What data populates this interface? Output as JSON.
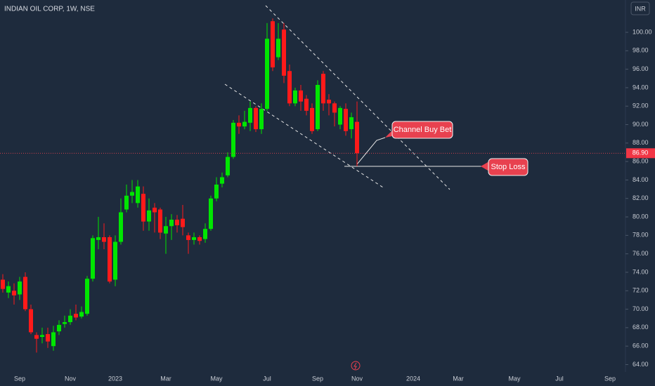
{
  "chart_data": {
    "type": "candlestick",
    "title": "INDIAN OIL CORP, 1W, NSE",
    "currency": "INR",
    "categories": [
      null,
      null,
      null,
      "Sep",
      null,
      null,
      null,
      null,
      null,
      null,
      null,
      null,
      "Nov",
      null,
      null,
      null,
      null,
      null,
      null,
      null,
      "2023",
      null,
      null,
      null,
      null,
      null,
      null,
      null,
      null,
      "Mar",
      null,
      null,
      null,
      null,
      null,
      null,
      null,
      null,
      "May",
      null,
      null,
      null,
      null,
      null,
      null,
      null,
      null,
      "Jul",
      null,
      null,
      null,
      null,
      null,
      null,
      null,
      null,
      "Sep",
      null,
      null,
      null,
      null,
      null,
      null,
      "Nov",
      null,
      null,
      null,
      null,
      null,
      null,
      null,
      null,
      null,
      "2024",
      null,
      null,
      null,
      null,
      null,
      null,
      null,
      "Mar",
      null,
      null,
      null,
      null,
      null,
      null,
      null,
      null,
      null,
      "May",
      null,
      null,
      null,
      null,
      null,
      null,
      null,
      "Jul",
      null,
      null,
      null,
      null,
      null,
      null,
      null,
      null,
      "Sep",
      null,
      null
    ],
    "open": [
      73.2,
      71.8,
      72,
      71.6,
      73.5,
      70,
      67.2,
      67,
      67.3,
      66,
      67.6,
      68.4,
      68.6,
      69.5,
      69.2,
      69.5,
      73.3,
      77.5,
      77.8,
      77.8,
      73.2,
      77.3,
      80.8,
      82.3,
      81.5,
      82.5,
      79.5,
      81,
      80.8,
      78.2,
      79,
      79.7,
      79.8,
      78,
      77.5,
      77.8,
      77.6,
      78.7,
      82,
      83.6,
      84.5,
      86.5,
      90.2,
      89.8,
      90.2,
      91.8,
      89.5,
      91.7,
      101.2,
      97.3,
      100.3,
      95.8,
      92.3,
      93.7,
      92.8,
      91.8,
      89.5,
      95.5,
      92.7,
      92.3,
      90,
      91.7,
      89.5,
      90.3,
      null,
      null,
      null,
      null,
      null,
      null,
      null,
      null,
      null,
      null,
      null,
      null,
      null,
      null,
      null,
      null,
      null,
      null,
      null,
      null,
      null,
      null,
      null,
      null,
      null,
      null,
      null,
      null,
      null,
      null,
      null,
      null,
      null,
      null,
      null,
      null,
      null,
      null,
      null,
      null,
      null,
      null,
      null,
      null,
      null,
      null,
      null
    ],
    "high": [
      73.8,
      73,
      72.8,
      73.5,
      74,
      70.5,
      67.5,
      68,
      68,
      68.2,
      68.8,
      69.3,
      70,
      70.5,
      70.3,
      73.6,
      78,
      80,
      79.3,
      78,
      78,
      82,
      83.5,
      84,
      84,
      83.3,
      82,
      81.5,
      81,
      80,
      80.3,
      80.2,
      81.3,
      78.3,
      78.3,
      78,
      79.3,
      82.3,
      84.3,
      84.8,
      87,
      90.5,
      91,
      91.5,
      92.5,
      92,
      92.3,
      101,
      101.5,
      101,
      101,
      96.5,
      94,
      94.3,
      93.2,
      92.3,
      94.8,
      95.8,
      93.3,
      92.5,
      92,
      92.3,
      91.3,
      92.5,
      null,
      null,
      null,
      null,
      null,
      null,
      null,
      null,
      null,
      null,
      null,
      null,
      null,
      null,
      null,
      null,
      null,
      null,
      null,
      null,
      null,
      null,
      null,
      null,
      null,
      null,
      null,
      null,
      null,
      null,
      null,
      null,
      null,
      null,
      null,
      null,
      null,
      null,
      null,
      null,
      null,
      null,
      null,
      null,
      null,
      null,
      null
    ],
    "low": [
      71.8,
      71.2,
      70.5,
      71,
      69.8,
      67.3,
      65.3,
      66.3,
      65.8,
      65.5,
      67.2,
      68,
      68.3,
      68.8,
      69,
      69.3,
      73,
      76.5,
      76.5,
      72.8,
      72.5,
      77,
      80.5,
      81.5,
      81,
      78.5,
      78.5,
      78.3,
      77.6,
      76,
      77.5,
      78.3,
      78,
      76,
      77,
      77,
      77.2,
      78.5,
      81.7,
      83.2,
      84.3,
      86.3,
      89,
      89.5,
      89.3,
      89.2,
      89,
      91.5,
      95.8,
      97,
      94.5,
      92,
      92,
      91.5,
      91,
      89,
      89.3,
      91.5,
      91,
      89.8,
      89.5,
      88.8,
      88.5,
      85.5,
      null,
      null,
      null,
      null,
      null,
      null,
      null,
      null,
      null,
      null,
      null,
      null,
      null,
      null,
      null,
      null,
      null,
      null,
      null,
      null,
      null,
      null,
      null,
      null,
      null,
      null,
      null,
      null,
      null,
      null,
      null,
      null,
      null,
      null,
      null,
      null,
      null,
      null,
      null,
      null,
      null,
      null,
      null,
      null,
      null,
      null,
      null
    ],
    "close": [
      72.2,
      72.5,
      71.5,
      73,
      70,
      67.5,
      66.8,
      67.2,
      66.5,
      67.5,
      68.3,
      68.6,
      69.3,
      69.1,
      69.7,
      73.3,
      77.7,
      77.8,
      77.3,
      73,
      77.3,
      80.5,
      82.3,
      82.7,
      83.3,
      79.5,
      80.7,
      80.5,
      78.3,
      79,
      79.7,
      79.1,
      78.9,
      77.5,
      77.8,
      77.4,
      78.7,
      82,
      83.5,
      84.3,
      86.5,
      90.2,
      89.8,
      90.3,
      91.8,
      89.5,
      91.7,
      99.3,
      96.2,
      99.3,
      95.3,
      92.3,
      93.7,
      92.5,
      91.5,
      89.3,
      94.3,
      92.3,
      92.3,
      91.3,
      91.8,
      89.3,
      90.8,
      86.9,
      null,
      null,
      null,
      null,
      null,
      null,
      null,
      null,
      null,
      null,
      null,
      null,
      null,
      null,
      null,
      null,
      null,
      null,
      null,
      null,
      null,
      null,
      null,
      null,
      null,
      null,
      null,
      null,
      null,
      null,
      null,
      null,
      null,
      null,
      null,
      null,
      null,
      null,
      null,
      null,
      null,
      null,
      null,
      null,
      null,
      null,
      null
    ],
    "up_color": "#00e600",
    "down_color": "#ff1a1a",
    "ylim": [
      63.2,
      103.5
    ],
    "yticks": [
      {
        "value": 64,
        "label": "64.00"
      },
      {
        "value": 66,
        "label": "66.00"
      },
      {
        "value": 68,
        "label": "68.00"
      },
      {
        "value": 70,
        "label": "70.00"
      },
      {
        "value": 72,
        "label": "72.00"
      },
      {
        "value": 74,
        "label": "74.00"
      },
      {
        "value": 76,
        "label": "76.00"
      },
      {
        "value": 78,
        "label": "78.00"
      },
      {
        "value": 80,
        "label": "80.00"
      },
      {
        "value": 82,
        "label": "82.00"
      },
      {
        "value": 84,
        "label": "84.00"
      },
      {
        "value": 86,
        "label": "86.00"
      },
      {
        "value": 88,
        "label": "88.00"
      },
      {
        "value": 90,
        "label": "90.00"
      },
      {
        "value": 92,
        "label": "92.00"
      },
      {
        "value": 94,
        "label": "94.00"
      },
      {
        "value": 96,
        "label": "96.00"
      },
      {
        "value": 98,
        "label": "98.00"
      },
      {
        "value": 100,
        "label": "100.00"
      }
    ],
    "price_line": {
      "value": 86.9,
      "label": "86.90"
    },
    "annotations": [
      "Channel Buy Bet",
      "Stop Loss"
    ]
  }
}
